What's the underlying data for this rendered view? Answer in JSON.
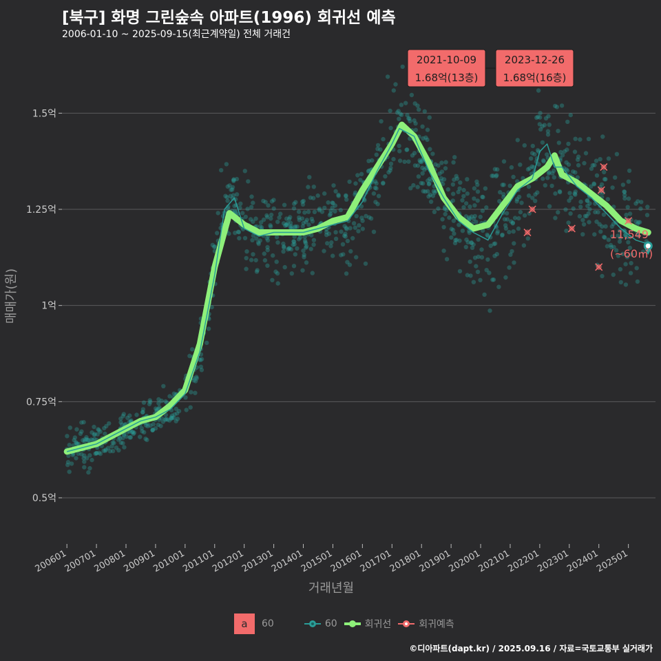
{
  "header": {
    "title": "[북구] 화명 그린숲속 아파트(1996) 회귀선 예측",
    "subtitle": "2006-01-10 ~ 2025-09-15(최근계약일) 전체 거래건"
  },
  "footer": "©디아파트(dapt.kr) / 2025.09.16 / 자료=국토교통부 실거래가",
  "colors": {
    "background": "#2a2a2c",
    "scatter": "#2a9d98",
    "line_60": "#2a9d98",
    "regression": "#8ef07a",
    "forecast": "#f26b6b",
    "grid": "#5a5a5c"
  },
  "legend": {
    "box_letter": "a",
    "box_label": "60",
    "series_60": "60",
    "regression": "회귀선",
    "forecast": "회귀예측"
  },
  "annotations": {
    "high1_date": "2021-10-09",
    "high1_value": "1.68억(13층)",
    "high2_date": "2023-12-26",
    "high2_value": "1.68억(16층)",
    "latest_price": "11,549",
    "latest_area": "(~60㎡)"
  },
  "chart_data": {
    "type": "scatter",
    "xlabel": "거래년월",
    "ylabel": "매매가(원)",
    "x_range": [
      "2005-11",
      "2025-12"
    ],
    "ylim": [
      0.38,
      1.66
    ],
    "y_ticks": [
      {
        "value": 0.5,
        "label": "0.5억"
      },
      {
        "value": 0.75,
        "label": "0.75억"
      },
      {
        "value": 1.0,
        "label": "1억"
      },
      {
        "value": 1.25,
        "label": "1.25억"
      },
      {
        "value": 1.5,
        "label": "1.5억"
      }
    ],
    "x_ticks": [
      "200601",
      "200701",
      "200801",
      "200901",
      "201001",
      "201101",
      "201201",
      "201301",
      "201401",
      "201501",
      "201601",
      "201701",
      "201801",
      "201901",
      "202001",
      "202101",
      "202201",
      "202301",
      "202401",
      "202501"
    ],
    "series": [
      {
        "name": "60",
        "kind": "line",
        "points": [
          [
            "2006-01",
            0.62
          ],
          [
            "2006-07",
            0.63
          ],
          [
            "2007-01",
            0.64
          ],
          [
            "2007-07",
            0.66
          ],
          [
            "2008-01",
            0.68
          ],
          [
            "2008-07",
            0.7
          ],
          [
            "2009-01",
            0.71
          ],
          [
            "2009-07",
            0.73
          ],
          [
            "2010-01",
            0.77
          ],
          [
            "2010-07",
            0.88
          ],
          [
            "2011-01",
            1.08
          ],
          [
            "2011-05",
            1.25
          ],
          [
            "2011-09",
            1.28
          ],
          [
            "2012-01",
            1.2
          ],
          [
            "2012-07",
            1.18
          ],
          [
            "2013-01",
            1.19
          ],
          [
            "2013-07",
            1.19
          ],
          [
            "2014-01",
            1.19
          ],
          [
            "2014-07",
            1.2
          ],
          [
            "2015-01",
            1.21
          ],
          [
            "2015-07",
            1.22
          ],
          [
            "2016-01",
            1.27
          ],
          [
            "2016-07",
            1.35
          ],
          [
            "2017-01",
            1.42
          ],
          [
            "2017-04",
            1.46
          ],
          [
            "2017-10",
            1.44
          ],
          [
            "2018-04",
            1.35
          ],
          [
            "2018-10",
            1.28
          ],
          [
            "2019-04",
            1.22
          ],
          [
            "2019-10",
            1.19
          ],
          [
            "2020-04",
            1.17
          ],
          [
            "2020-10",
            1.24
          ],
          [
            "2021-04",
            1.3
          ],
          [
            "2021-10",
            1.33
          ],
          [
            "2022-01",
            1.4
          ],
          [
            "2022-04",
            1.42
          ],
          [
            "2022-07",
            1.36
          ],
          [
            "2022-10",
            1.36
          ],
          [
            "2023-04",
            1.31
          ],
          [
            "2023-10",
            1.28
          ],
          [
            "2024-04",
            1.24
          ],
          [
            "2024-10",
            1.2
          ],
          [
            "2025-04",
            1.17
          ],
          [
            "2025-09",
            1.16
          ]
        ]
      },
      {
        "name": "회귀선",
        "kind": "regression",
        "points": [
          [
            "2006-01",
            0.62
          ],
          [
            "2006-07",
            0.63
          ],
          [
            "2007-01",
            0.64
          ],
          [
            "2007-07",
            0.66
          ],
          [
            "2008-01",
            0.68
          ],
          [
            "2008-07",
            0.7
          ],
          [
            "2009-01",
            0.71
          ],
          [
            "2009-07",
            0.74
          ],
          [
            "2010-01",
            0.78
          ],
          [
            "2010-07",
            0.9
          ],
          [
            "2011-01",
            1.1
          ],
          [
            "2011-07",
            1.24
          ],
          [
            "2012-01",
            1.21
          ],
          [
            "2012-07",
            1.19
          ],
          [
            "2013-01",
            1.19
          ],
          [
            "2013-07",
            1.19
          ],
          [
            "2014-01",
            1.19
          ],
          [
            "2014-07",
            1.2
          ],
          [
            "2015-01",
            1.22
          ],
          [
            "2015-07",
            1.23
          ],
          [
            "2016-01",
            1.3
          ],
          [
            "2016-07",
            1.36
          ],
          [
            "2017-01",
            1.42
          ],
          [
            "2017-05",
            1.47
          ],
          [
            "2017-10",
            1.44
          ],
          [
            "2018-04",
            1.37
          ],
          [
            "2018-10",
            1.28
          ],
          [
            "2019-04",
            1.23
          ],
          [
            "2019-10",
            1.2
          ],
          [
            "2020-04",
            1.21
          ],
          [
            "2020-10",
            1.26
          ],
          [
            "2021-04",
            1.31
          ],
          [
            "2021-10",
            1.33
          ],
          [
            "2022-04",
            1.36
          ],
          [
            "2022-07",
            1.39
          ],
          [
            "2022-10",
            1.34
          ],
          [
            "2023-04",
            1.32
          ],
          [
            "2023-10",
            1.29
          ],
          [
            "2024-04",
            1.26
          ],
          [
            "2024-10",
            1.22
          ],
          [
            "2025-04",
            1.2
          ],
          [
            "2025-09",
            1.19
          ]
        ]
      },
      {
        "name": "회귀예측",
        "kind": "forecast_points",
        "points": [
          [
            "2021-08",
            1.19
          ],
          [
            "2021-10",
            1.25
          ],
          [
            "2023-02",
            1.2
          ],
          [
            "2024-01",
            1.1
          ],
          [
            "2024-02",
            1.3
          ],
          [
            "2024-03",
            1.36
          ],
          [
            "2025-01",
            1.22
          ]
        ]
      }
    ],
    "latest_point": [
      "2025-09",
      1.155
    ]
  }
}
